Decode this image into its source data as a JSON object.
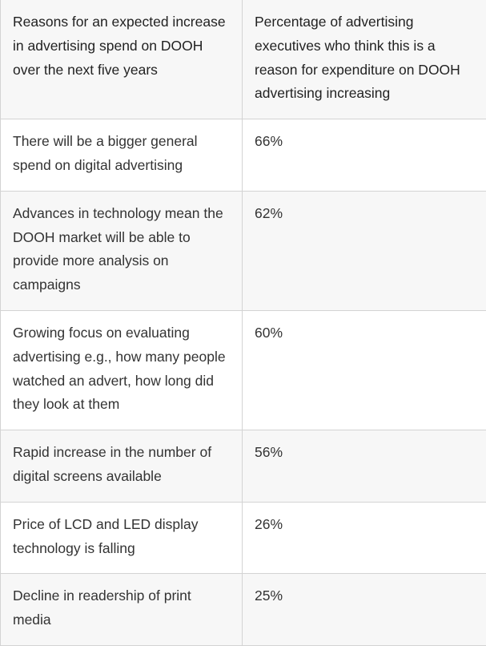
{
  "table": {
    "headers": [
      "Reasons for an expected increase in advertising spend on DOOH over the next five years",
      "Percentage of advertising executives who think this is a reason for expenditure on DOOH advertising increasing"
    ],
    "rows": [
      {
        "reason": "There will be a bigger general spend on digital advertising",
        "percentage": "66%"
      },
      {
        "reason": "Advances in technology mean the DOOH market will be able to provide more analysis on campaigns",
        "percentage": "62%"
      },
      {
        "reason": "Growing focus on evaluating advertising e.g., how many people watched an advert, how long did they look at them",
        "percentage": "60%"
      },
      {
        "reason": "Rapid increase in the number of digital screens available",
        "percentage": "56%"
      },
      {
        "reason": "Price of LCD and LED display technology is falling",
        "percentage": "26%"
      },
      {
        "reason": "Decline in readership of print media",
        "percentage": "25%"
      }
    ]
  }
}
